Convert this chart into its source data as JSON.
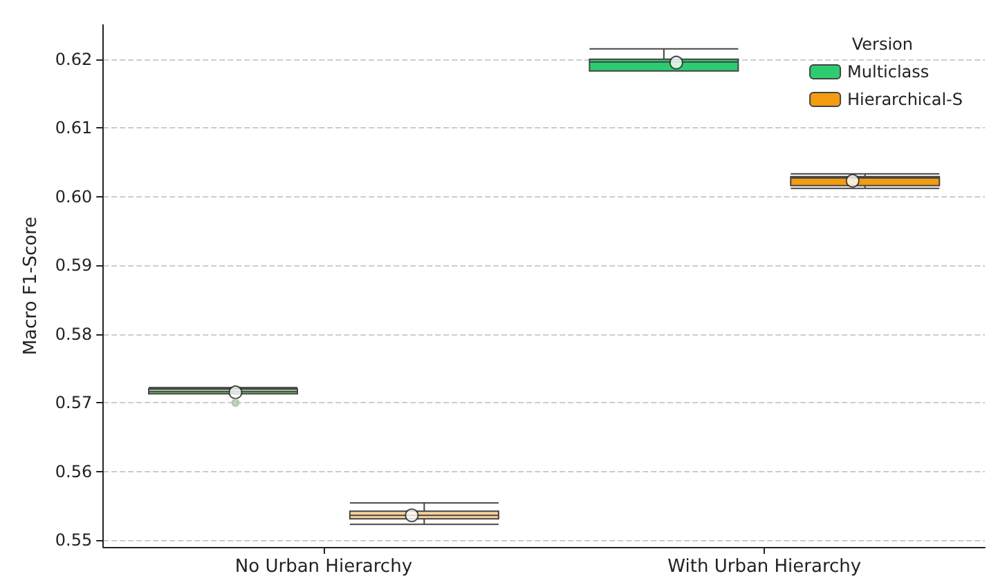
{
  "chart_data": {
    "type": "box",
    "ylabel": "Macro F1-Score",
    "legend_title": "Version",
    "categories": [
      "No Urban Hierarchy",
      "With Urban Hierarchy"
    ],
    "series": [
      {
        "name": "Multiclass",
        "color": "#2ecc71",
        "colors": [
          "#8fd18f",
          "#2ecc71"
        ],
        "boxes": [
          {
            "low": 0.5713,
            "q1": 0.5713,
            "median": 0.5716,
            "q3": 0.572,
            "high": 0.5722,
            "mean": 0.5715,
            "outliers": [
              0.57
            ]
          },
          {
            "low": 0.6183,
            "q1": 0.6183,
            "median": 0.6196,
            "q3": 0.62,
            "high": 0.6215,
            "mean": 0.6195
          }
        ]
      },
      {
        "name": "Hierarchical-S",
        "color": "#f39c12",
        "colors": [
          "#fdd49e",
          "#f39c12"
        ],
        "boxes": [
          {
            "low": 0.5523,
            "q1": 0.5531,
            "median": 0.5536,
            "q3": 0.5542,
            "high": 0.5554,
            "mean": 0.5536
          },
          {
            "low": 0.6012,
            "q1": 0.6016,
            "median": 0.6027,
            "q3": 0.6029,
            "high": 0.6033,
            "mean": 0.6023
          }
        ]
      }
    ],
    "ylim": [
      0.549,
      0.625
    ],
    "yticks": [
      0.55,
      0.56,
      0.57,
      0.58,
      0.59,
      {
        "value": 0.6,
        "label": "0.60"
      },
      0.61,
      0.62
    ],
    "grid": "y",
    "legend": "top right"
  }
}
